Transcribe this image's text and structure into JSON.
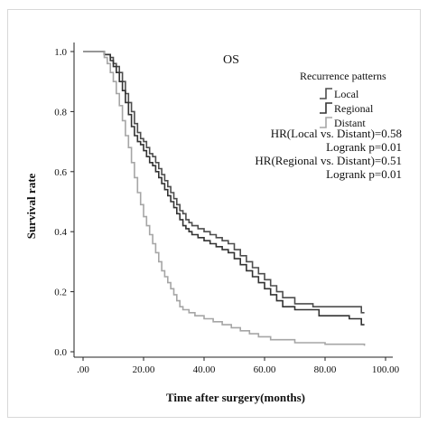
{
  "chart_data": {
    "type": "line",
    "step": true,
    "title": "OS",
    "xlabel": "Time after surgery(months)",
    "ylabel": "Survival rate",
    "xlim": [
      0,
      100
    ],
    "ylim": [
      0,
      1.0
    ],
    "x_ticks": [
      0,
      20,
      40,
      60,
      80,
      100
    ],
    "x_tick_labels": [
      ".00",
      "20.00",
      "40.00",
      "60.00",
      "80.00",
      "100.00"
    ],
    "y_ticks": [
      0,
      0.2,
      0.4,
      0.6,
      0.8,
      1.0
    ],
    "y_tick_labels": [
      "0.0",
      "0.2",
      "0.4",
      "0.6",
      "0.8",
      "1.0"
    ],
    "grid": false,
    "legend": {
      "title": "Recurrence patterns",
      "placement": "top-right"
    },
    "series": [
      {
        "name": "Local",
        "color": "#4d4d4d",
        "points": [
          [
            0,
            1.0
          ],
          [
            7,
            0.99
          ],
          [
            9,
            0.98
          ],
          [
            10,
            0.96
          ],
          [
            11,
            0.95
          ],
          [
            12,
            0.93
          ],
          [
            13,
            0.9
          ],
          [
            14,
            0.86
          ],
          [
            15,
            0.83
          ],
          [
            16,
            0.8
          ],
          [
            17,
            0.76
          ],
          [
            18,
            0.73
          ],
          [
            19,
            0.71
          ],
          [
            20,
            0.7
          ],
          [
            21,
            0.68
          ],
          [
            22,
            0.66
          ],
          [
            23,
            0.65
          ],
          [
            24,
            0.63
          ],
          [
            25,
            0.61
          ],
          [
            26,
            0.59
          ],
          [
            27,
            0.57
          ],
          [
            28,
            0.55
          ],
          [
            29,
            0.53
          ],
          [
            30,
            0.51
          ],
          [
            31,
            0.49
          ],
          [
            32,
            0.47
          ],
          [
            33,
            0.46
          ],
          [
            34,
            0.44
          ],
          [
            35,
            0.43
          ],
          [
            36,
            0.42
          ],
          [
            38,
            0.41
          ],
          [
            40,
            0.4
          ],
          [
            42,
            0.39
          ],
          [
            44,
            0.38
          ],
          [
            46,
            0.37
          ],
          [
            48,
            0.36
          ],
          [
            50,
            0.34
          ],
          [
            52,
            0.32
          ],
          [
            54,
            0.3
          ],
          [
            56,
            0.28
          ],
          [
            58,
            0.26
          ],
          [
            60,
            0.24
          ],
          [
            62,
            0.22
          ],
          [
            64,
            0.2
          ],
          [
            66,
            0.18
          ],
          [
            70,
            0.16
          ],
          [
            76,
            0.15
          ],
          [
            92,
            0.13
          ],
          [
            93,
            0.13
          ]
        ]
      },
      {
        "name": "Regional",
        "color": "#333333",
        "points": [
          [
            0,
            1.0
          ],
          [
            7,
            0.99
          ],
          [
            9,
            0.97
          ],
          [
            10,
            0.95
          ],
          [
            11,
            0.93
          ],
          [
            12,
            0.9
          ],
          [
            13,
            0.87
          ],
          [
            14,
            0.83
          ],
          [
            15,
            0.79
          ],
          [
            16,
            0.75
          ],
          [
            17,
            0.72
          ],
          [
            18,
            0.7
          ],
          [
            19,
            0.69
          ],
          [
            20,
            0.67
          ],
          [
            21,
            0.65
          ],
          [
            22,
            0.63
          ],
          [
            23,
            0.62
          ],
          [
            24,
            0.6
          ],
          [
            25,
            0.58
          ],
          [
            26,
            0.56
          ],
          [
            27,
            0.54
          ],
          [
            28,
            0.52
          ],
          [
            29,
            0.5
          ],
          [
            30,
            0.48
          ],
          [
            31,
            0.46
          ],
          [
            32,
            0.44
          ],
          [
            33,
            0.42
          ],
          [
            34,
            0.41
          ],
          [
            35,
            0.4
          ],
          [
            36,
            0.39
          ],
          [
            38,
            0.38
          ],
          [
            40,
            0.37
          ],
          [
            42,
            0.36
          ],
          [
            44,
            0.35
          ],
          [
            46,
            0.34
          ],
          [
            48,
            0.33
          ],
          [
            50,
            0.31
          ],
          [
            52,
            0.29
          ],
          [
            54,
            0.27
          ],
          [
            56,
            0.25
          ],
          [
            58,
            0.23
          ],
          [
            60,
            0.21
          ],
          [
            62,
            0.19
          ],
          [
            64,
            0.17
          ],
          [
            66,
            0.15
          ],
          [
            70,
            0.14
          ],
          [
            78,
            0.12
          ],
          [
            88,
            0.11
          ],
          [
            92,
            0.09
          ],
          [
            93,
            0.09
          ]
        ]
      },
      {
        "name": "Distant",
        "color": "#a6a6a6",
        "points": [
          [
            0,
            1.0
          ],
          [
            7,
            0.98
          ],
          [
            8,
            0.96
          ],
          [
            9,
            0.93
          ],
          [
            10,
            0.9
          ],
          [
            11,
            0.86
          ],
          [
            12,
            0.82
          ],
          [
            13,
            0.77
          ],
          [
            14,
            0.72
          ],
          [
            15,
            0.68
          ],
          [
            16,
            0.63
          ],
          [
            17,
            0.58
          ],
          [
            18,
            0.53
          ],
          [
            19,
            0.49
          ],
          [
            20,
            0.45
          ],
          [
            21,
            0.42
          ],
          [
            22,
            0.39
          ],
          [
            23,
            0.36
          ],
          [
            24,
            0.33
          ],
          [
            25,
            0.3
          ],
          [
            26,
            0.27
          ],
          [
            27,
            0.25
          ],
          [
            28,
            0.23
          ],
          [
            29,
            0.21
          ],
          [
            30,
            0.19
          ],
          [
            31,
            0.17
          ],
          [
            32,
            0.15
          ],
          [
            33,
            0.14
          ],
          [
            35,
            0.13
          ],
          [
            37,
            0.12
          ],
          [
            40,
            0.11
          ],
          [
            43,
            0.1
          ],
          [
            46,
            0.09
          ],
          [
            49,
            0.08
          ],
          [
            52,
            0.07
          ],
          [
            55,
            0.06
          ],
          [
            58,
            0.05
          ],
          [
            62,
            0.04
          ],
          [
            70,
            0.03
          ],
          [
            80,
            0.025
          ],
          [
            93,
            0.02
          ]
        ]
      }
    ],
    "annotations": [
      "HR(Local vs. Distant)=0.58",
      "Logrank p=0.01",
      "HR(Regional vs. Distant)=0.51",
      "Logrank p=0.01"
    ]
  }
}
